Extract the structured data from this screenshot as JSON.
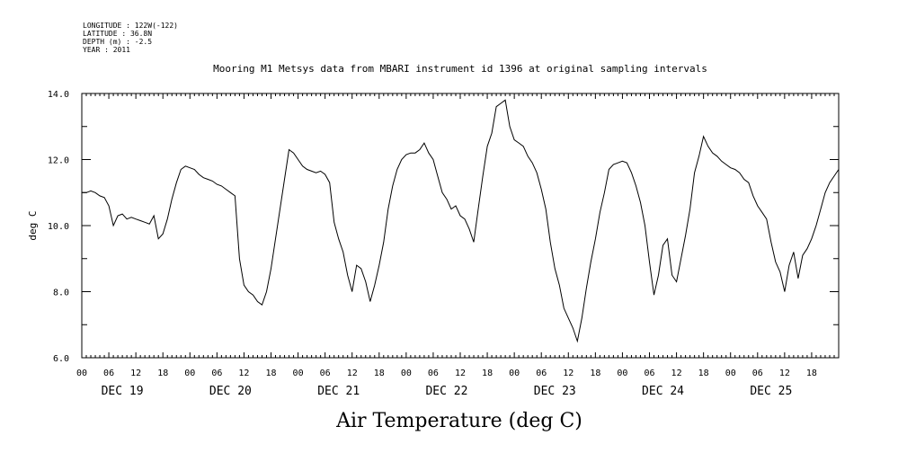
{
  "meta": {
    "longitude": "LONGITUDE : 122W(-122)",
    "latitude": "LATITUDE : 36.8N",
    "depth": "DEPTH (m) : -2.5",
    "year": "YEAR : 2011"
  },
  "chart_data": {
    "type": "line",
    "title": "Mooring M1 Metsys data from MBARI instrument id 1396 at original sampling intervals",
    "xlabel": "Air Temperature (deg C)",
    "ylabel": "deg C",
    "ylim": [
      6.0,
      14.0
    ],
    "yticks": [
      "6.0",
      "8.0",
      "10.0",
      "12.0",
      "14.0"
    ],
    "xlim_hours": [
      0,
      168
    ],
    "hour_tick_labels": [
      "00",
      "06",
      "12",
      "18"
    ],
    "day_labels": [
      "DEC 19",
      "DEC 20",
      "DEC 21",
      "DEC 22",
      "DEC 23",
      "DEC 24",
      "DEC 25"
    ],
    "grid": false,
    "series": [
      {
        "color": "#000000",
        "x_hours": [
          0,
          1,
          2,
          3,
          4,
          5,
          6,
          7,
          8,
          9,
          10,
          11,
          12,
          13,
          14,
          15,
          16,
          17,
          18,
          19,
          20,
          21,
          22,
          23,
          24,
          25,
          26,
          27,
          28,
          29,
          30,
          31,
          32,
          33,
          34,
          35,
          36,
          37,
          38,
          39,
          40,
          41,
          42,
          43,
          44,
          45,
          46,
          47,
          48,
          49,
          50,
          51,
          52,
          53,
          54,
          55,
          56,
          57,
          58,
          59,
          60,
          61,
          62,
          63,
          64,
          65,
          66,
          67,
          68,
          69,
          70,
          71,
          72,
          73,
          74,
          75,
          76,
          77,
          78,
          79,
          80,
          81,
          82,
          83,
          84,
          85,
          86,
          87,
          88,
          89,
          90,
          91,
          92,
          93,
          94,
          95,
          96,
          97,
          98,
          99,
          100,
          101,
          102,
          103,
          104,
          105,
          106,
          107,
          108,
          109,
          110,
          111,
          112,
          113,
          114,
          115,
          116,
          117,
          118,
          119,
          120,
          121,
          122,
          123,
          124,
          125,
          126,
          127,
          128,
          129,
          130,
          131,
          132,
          133,
          134,
          135,
          136,
          137,
          138,
          139,
          140,
          141,
          142,
          143,
          144,
          145,
          146,
          147,
          148,
          149,
          150,
          151,
          152,
          153,
          154,
          155,
          156,
          157,
          158,
          159,
          160,
          161,
          162,
          163,
          164,
          165,
          166,
          167,
          168
        ],
        "values": [
          11.0,
          11.0,
          11.05,
          11.0,
          10.9,
          10.85,
          10.6,
          10.0,
          10.3,
          10.35,
          10.2,
          10.25,
          10.2,
          10.15,
          10.1,
          10.05,
          10.3,
          9.6,
          9.75,
          10.2,
          10.8,
          11.3,
          11.7,
          11.8,
          11.75,
          11.7,
          11.55,
          11.45,
          11.4,
          11.35,
          11.25,
          11.2,
          11.1,
          11.0,
          10.9,
          9.0,
          8.2,
          8.0,
          7.9,
          7.7,
          7.6,
          8.0,
          8.7,
          9.6,
          10.5,
          11.4,
          12.3,
          12.2,
          12.0,
          11.8,
          11.7,
          11.65,
          11.6,
          11.65,
          11.55,
          11.3,
          10.1,
          9.6,
          9.2,
          8.5,
          8.0,
          8.8,
          8.7,
          8.3,
          7.7,
          8.2,
          8.8,
          9.5,
          10.5,
          11.2,
          11.7,
          12.0,
          12.15,
          12.2,
          12.2,
          12.3,
          12.5,
          12.2,
          12.0,
          11.5,
          11.0,
          10.8,
          10.5,
          10.6,
          10.3,
          10.2,
          9.9,
          9.5,
          10.5,
          11.5,
          12.4,
          12.8,
          13.6,
          13.7,
          13.8,
          13.0,
          12.6,
          12.5,
          12.4,
          12.1,
          11.9,
          11.6,
          11.1,
          10.5,
          9.5,
          8.7,
          8.2,
          7.5,
          7.2,
          6.9,
          6.5,
          7.2,
          8.1,
          8.9,
          9.6,
          10.4,
          11.0,
          11.7,
          11.85,
          11.9,
          11.95,
          11.9,
          11.6,
          11.2,
          10.7,
          10.0,
          8.9,
          7.9,
          8.5,
          9.4,
          9.6,
          8.5,
          8.3,
          9.0,
          9.7,
          10.5,
          11.6,
          12.1,
          12.7,
          12.4,
          12.2,
          12.1,
          11.95,
          11.85,
          11.75,
          11.7,
          11.6,
          11.4,
          11.3,
          10.9,
          10.6,
          10.4,
          10.2,
          9.5,
          8.9,
          8.6,
          8.0,
          8.8,
          9.2,
          8.4,
          9.1,
          9.3,
          9.6,
          10.0,
          10.5,
          11.0,
          11.3,
          11.5,
          11.7
        ]
      }
    ]
  }
}
